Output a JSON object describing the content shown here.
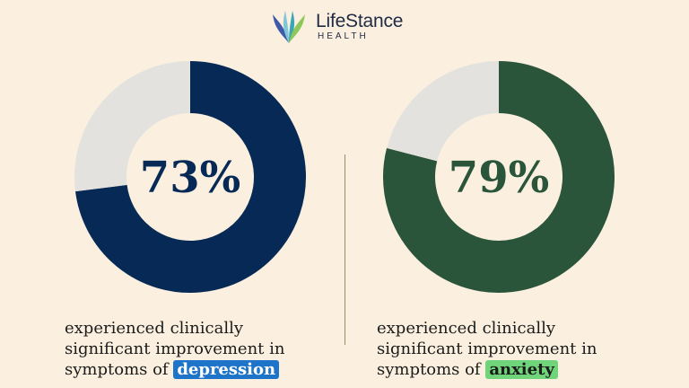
{
  "brand": {
    "name": "LifeStance",
    "sub": "HEALTH"
  },
  "chart_data": [
    {
      "type": "pie",
      "donut": true,
      "center_label": "73%",
      "value": 73,
      "remainder": 27,
      "color": "#062a55",
      "remainder_color": "#e3e2de",
      "caption_line1": "experienced clinically",
      "caption_line2": "significant improvement in",
      "caption_prefix": "symptoms of ",
      "caption_highlight": "depression",
      "highlight_color": "#1e74c8"
    },
    {
      "type": "pie",
      "donut": true,
      "center_label": "79%",
      "value": 79,
      "remainder": 21,
      "color": "#2b553a",
      "remainder_color": "#e3e2de",
      "caption_line1": "experienced clinically",
      "caption_line2": "significant improvement in",
      "caption_prefix": "symptoms of ",
      "caption_highlight": "anxiety",
      "highlight_color": "#6fd47a"
    }
  ],
  "colors": {
    "background": "#fbf0df",
    "divider": "#9b8d6a"
  }
}
